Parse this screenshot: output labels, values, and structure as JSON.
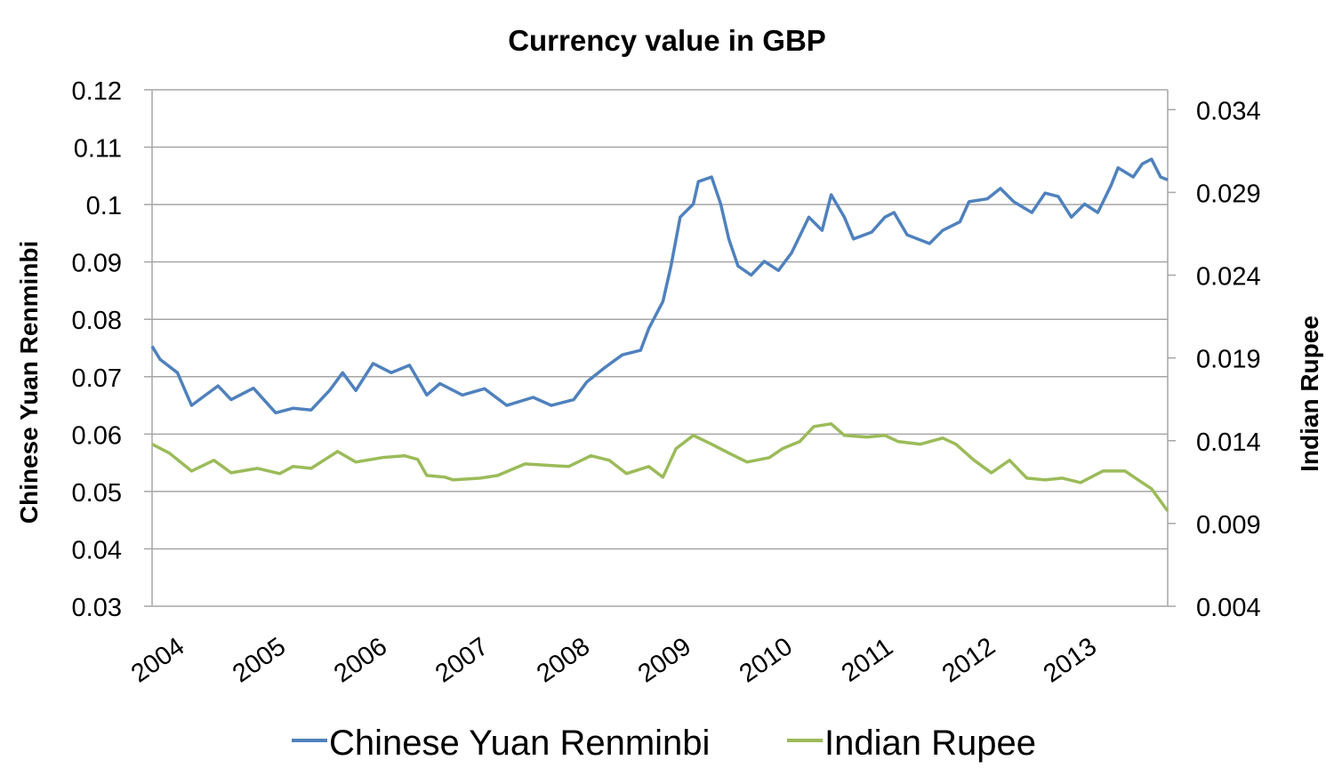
{
  "chart_data": {
    "type": "line",
    "title": "Currency value in GBP",
    "xlabel": "",
    "ylabel": "Chinese Yuan Renminbi",
    "ylabel_right": "Indian Rupee",
    "xlim": [
      2004,
      2014.02
    ],
    "ylim": [
      0.03,
      0.12
    ],
    "ylim_right": [
      0.004,
      0.0352
    ],
    "y_ticks": [
      "0.03",
      "0.04",
      "0.05",
      "0.06",
      "0.07",
      "0.08",
      "0.09",
      "0.1",
      "0.11",
      "0.12"
    ],
    "y_ticks_right": [
      "0.004",
      "0.009",
      "0.014",
      "0.019",
      "0.024",
      "0.029",
      "0.034"
    ],
    "x_ticks": [
      "2004",
      "2005",
      "2006",
      "2007",
      "2008",
      "2009",
      "2010",
      "2011",
      "2012",
      "2013"
    ],
    "grid": true,
    "legend": "bottom",
    "series": [
      {
        "name": "Chinese Yuan Renminbi",
        "axis": "left",
        "color": "#4F81BD",
        "x": [
          2004.0,
          2004.08,
          2004.25,
          2004.39,
          2004.65,
          2004.78,
          2005.0,
          2005.22,
          2005.39,
          2005.57,
          2005.75,
          2005.88,
          2006.01,
          2006.18,
          2006.36,
          2006.54,
          2006.71,
          2006.84,
          2007.06,
          2007.28,
          2007.5,
          2007.76,
          2007.94,
          2008.16,
          2008.29,
          2008.46,
          2008.64,
          2008.82,
          2008.9,
          2009.04,
          2009.12,
          2009.21,
          2009.34,
          2009.39,
          2009.52,
          2009.61,
          2009.69,
          2009.78,
          2009.91,
          2010.04,
          2010.18,
          2010.31,
          2010.48,
          2010.61,
          2010.7,
          2010.83,
          2010.92,
          2011.1,
          2011.23,
          2011.32,
          2011.45,
          2011.67,
          2011.8,
          2011.97,
          2012.06,
          2012.24,
          2012.37,
          2012.5,
          2012.68,
          2012.81,
          2012.94,
          2013.07,
          2013.2,
          2013.33,
          2013.46,
          2013.53,
          2013.68,
          2013.77,
          2013.86,
          2013.95,
          2014.02
        ],
        "y": [
          0.0753,
          0.073,
          0.0707,
          0.065,
          0.0684,
          0.066,
          0.068,
          0.0637,
          0.0645,
          0.0642,
          0.0676,
          0.0707,
          0.0676,
          0.0723,
          0.0707,
          0.072,
          0.0668,
          0.0688,
          0.0668,
          0.0679,
          0.065,
          0.0664,
          0.065,
          0.066,
          0.0691,
          0.0715,
          0.0738,
          0.0746,
          0.0784,
          0.0831,
          0.0893,
          0.0978,
          0.1001,
          0.104,
          0.1048,
          0.1001,
          0.094,
          0.0893,
          0.0877,
          0.0901,
          0.0885,
          0.0916,
          0.0978,
          0.0955,
          0.1017,
          0.0978,
          0.094,
          0.0952,
          0.0978,
          0.0986,
          0.0947,
          0.0932,
          0.0955,
          0.097,
          0.1005,
          0.101,
          0.1028,
          0.1005,
          0.0986,
          0.102,
          0.1014,
          0.0978,
          0.1001,
          0.0986,
          0.1033,
          0.1064,
          0.1048,
          0.1071,
          0.1079,
          0.1048,
          0.1043
        ]
      },
      {
        "name": "Indian Rupee",
        "axis": "right",
        "color": "#9BBB59",
        "x": [
          2004.0,
          2004.17,
          2004.39,
          2004.61,
          2004.78,
          2005.04,
          2005.26,
          2005.39,
          2005.57,
          2005.83,
          2006.01,
          2006.27,
          2006.49,
          2006.62,
          2006.71,
          2006.89,
          2006.97,
          2007.24,
          2007.41,
          2007.68,
          2007.94,
          2008.11,
          2008.33,
          2008.51,
          2008.68,
          2008.9,
          2009.04,
          2009.17,
          2009.34,
          2009.52,
          2009.69,
          2009.87,
          2010.09,
          2010.22,
          2010.39,
          2010.53,
          2010.7,
          2010.83,
          2011.05,
          2011.23,
          2011.36,
          2011.58,
          2011.8,
          2011.93,
          2012.11,
          2012.28,
          2012.46,
          2012.63,
          2012.81,
          2012.98,
          2013.16,
          2013.38,
          2013.6,
          2013.73,
          2013.86,
          2014.02
        ],
        "y": [
          0.01379,
          0.01325,
          0.01217,
          0.01282,
          0.01206,
          0.01233,
          0.01201,
          0.01244,
          0.01233,
          0.01335,
          0.01271,
          0.01298,
          0.01309,
          0.01287,
          0.0119,
          0.0118,
          0.01163,
          0.01174,
          0.0119,
          0.0126,
          0.0125,
          0.01244,
          0.01309,
          0.01282,
          0.01201,
          0.01244,
          0.0118,
          0.01352,
          0.01432,
          0.01379,
          0.01325,
          0.01271,
          0.01298,
          0.01352,
          0.01395,
          0.01486,
          0.01502,
          0.01432,
          0.01422,
          0.01432,
          0.01395,
          0.01379,
          0.01416,
          0.01379,
          0.01282,
          0.01206,
          0.01282,
          0.01174,
          0.01163,
          0.01174,
          0.01147,
          0.01217,
          0.01217,
          0.01163,
          0.0111,
          0.00975
        ]
      }
    ]
  }
}
